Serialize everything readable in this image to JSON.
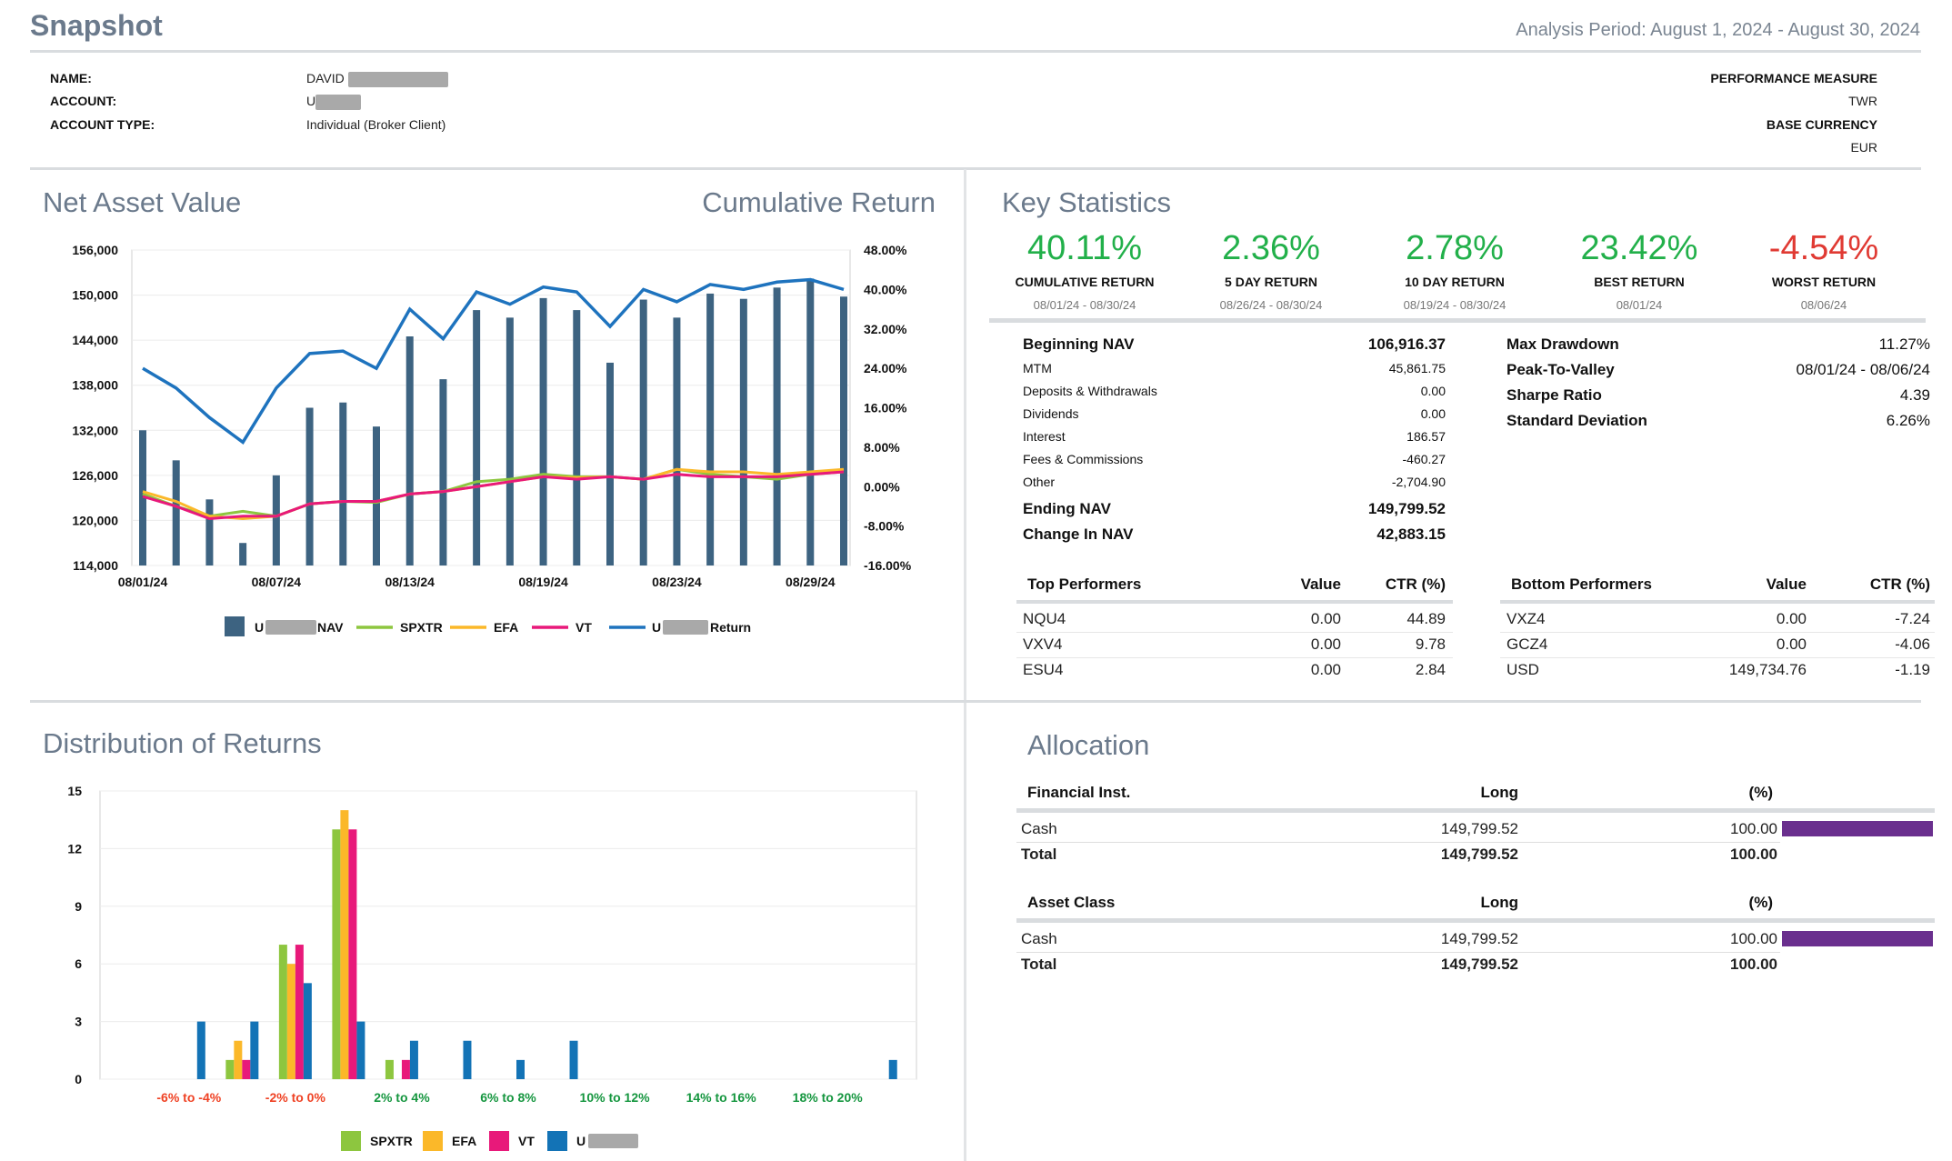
{
  "header": {
    "title": "Snapshot",
    "period": "Analysis Period: August 1, 2024 - August 30, 2024"
  },
  "account": {
    "name_label": "NAME:",
    "name_value": "DAVID",
    "account_label": "ACCOUNT:",
    "account_value": "U",
    "type_label": "ACCOUNT TYPE:",
    "type_value": "Individual (Broker Client)",
    "perf_label": "PERFORMANCE MEASURE",
    "perf_value": "TWR",
    "currency_label": "BASE CURRENCY",
    "currency_value": "EUR"
  },
  "nav_section": {
    "title": "Net Asset Value",
    "title_right": "Cumulative Return"
  },
  "key_stats": {
    "title": "Key Statistics",
    "cards": [
      {
        "pct": "40.11%",
        "label": "CUMULATIVE RETURN",
        "date": "08/01/24 - 08/30/24",
        "color": "#22b04a"
      },
      {
        "pct": "2.36%",
        "label": "5 DAY RETURN",
        "date": "08/26/24 - 08/30/24",
        "color": "#22b04a"
      },
      {
        "pct": "2.78%",
        "label": "10 DAY RETURN",
        "date": "08/19/24 - 08/30/24",
        "color": "#22b04a"
      },
      {
        "pct": "23.42%",
        "label": "BEST RETURN",
        "date": "08/01/24",
        "color": "#22b04a"
      },
      {
        "pct": "-4.54%",
        "label": "WORST RETURN",
        "date": "08/06/24",
        "color": "#e03a33"
      }
    ],
    "nav_rows": [
      {
        "label": "Beginning NAV",
        "value": "106,916.37",
        "strong": true
      },
      {
        "label": "MTM",
        "value": "45,861.75",
        "strong": false
      },
      {
        "label": "Deposits & Withdrawals",
        "value": "0.00",
        "strong": false
      },
      {
        "label": "Dividends",
        "value": "0.00",
        "strong": false
      },
      {
        "label": "Interest",
        "value": "186.57",
        "strong": false
      },
      {
        "label": "Fees & Commissions",
        "value": "-460.27",
        "strong": false
      },
      {
        "label": "Other",
        "value": "-2,704.90",
        "strong": false
      },
      {
        "label": "Ending NAV",
        "value": "149,799.52",
        "strong": true
      },
      {
        "label": "Change In NAV",
        "value": "42,883.15",
        "strong": true
      }
    ],
    "risk_rows": [
      {
        "label": "Max Drawdown",
        "value": "11.27%"
      },
      {
        "label": "Peak-To-Valley",
        "value": "08/01/24 - 08/06/24"
      },
      {
        "label": "Sharpe Ratio",
        "value": "4.39"
      },
      {
        "label": "Standard Deviation",
        "value": "6.26%"
      }
    ],
    "top": {
      "headers": [
        "Top Performers",
        "Value",
        "CTR (%)"
      ],
      "rows": [
        [
          "NQU4",
          "0.00",
          "44.89"
        ],
        [
          "VXV4",
          "0.00",
          "9.78"
        ],
        [
          "ESU4",
          "0.00",
          "2.84"
        ]
      ]
    },
    "bottom": {
      "headers": [
        "Bottom Performers",
        "Value",
        "CTR (%)"
      ],
      "rows": [
        [
          "VXZ4",
          "0.00",
          "-7.24"
        ],
        [
          "GCZ4",
          "0.00",
          "-4.06"
        ],
        [
          "USD",
          "149,734.76",
          "-1.19"
        ]
      ]
    }
  },
  "distribution": {
    "title": "Distribution of Returns"
  },
  "allocation": {
    "title": "Allocation",
    "tables": [
      {
        "headers": [
          "Financial Inst.",
          "Long",
          "(%)"
        ],
        "rows": [
          {
            "label": "Cash",
            "long": "149,799.52",
            "pct": "100.00",
            "bar": 1.0
          }
        ],
        "total": {
          "label": "Total",
          "long": "149,799.52",
          "pct": "100.00"
        }
      },
      {
        "headers": [
          "Asset Class",
          "Long",
          "(%)"
        ],
        "rows": [
          {
            "label": "Cash",
            "long": "149,799.52",
            "pct": "100.00",
            "bar": 1.0
          }
        ],
        "total": {
          "label": "Total",
          "long": "149,799.52",
          "pct": "100.00"
        }
      }
    ],
    "bar_color": "#6a2f8e"
  },
  "chart_data": [
    {
      "type": "bar+line",
      "title": "Net Asset Value",
      "subtitle": "Cumulative Return",
      "x_tick_labels": [
        "08/01/24",
        "08/07/24",
        "08/13/24",
        "08/19/24",
        "08/23/24",
        "08/29/24"
      ],
      "x_tick_index": [
        0,
        4,
        8,
        12,
        16,
        20
      ],
      "left_axis": {
        "ticks": [
          "156,000",
          "150,000",
          "144,000",
          "138,000",
          "132,000",
          "126,000",
          "120,000",
          "114,000"
        ],
        "range": [
          114000,
          156000
        ]
      },
      "right_axis": {
        "ticks": [
          "48.00%",
          "40.00%",
          "32.00%",
          "24.00%",
          "16.00%",
          "8.00%",
          "0.00%",
          "-8.00%",
          "-16.00%"
        ],
        "range": [
          -16,
          48
        ]
      },
      "nav_bars": [
        132000,
        128000,
        122800,
        117000,
        126000,
        135000,
        135700,
        132500,
        144500,
        138800,
        148000,
        147000,
        149600,
        148000,
        141000,
        149400,
        147000,
        150200,
        149500,
        151000,
        152200,
        149800
      ],
      "series": [
        {
          "name": "SPXTR",
          "color": "#8dc63f",
          "values": [
            -1.5,
            -4,
            -6,
            -5,
            -6,
            -3.5,
            -3,
            -3.2,
            -1.5,
            -1,
            1,
            1.5,
            2.5,
            2,
            2,
            1.5,
            3.5,
            2.5,
            2,
            1.5,
            2.5,
            3
          ]
        },
        {
          "name": "EFA",
          "color": "#fbb829",
          "values": [
            -1,
            -3,
            -6,
            -6.5,
            -6,
            -3.5,
            -3,
            -3,
            -1.5,
            -1,
            0,
            1,
            2,
            1.8,
            2,
            1.5,
            3.5,
            3,
            3,
            2.5,
            3,
            3.5
          ]
        },
        {
          "name": "VT",
          "color": "#e8197a",
          "values": [
            -2,
            -4,
            -6.5,
            -6,
            -6,
            -3.5,
            -3,
            -3,
            -1.5,
            -1,
            0,
            1,
            2,
            1.5,
            2,
            1.5,
            2.5,
            2,
            2,
            2,
            2.5,
            3
          ]
        },
        {
          "name": "Return",
          "color": "#1e73be",
          "values": [
            24,
            20,
            14,
            9,
            20,
            27,
            27.5,
            24,
            36,
            30,
            39.5,
            37,
            40.5,
            39.5,
            32.5,
            40,
            37.5,
            41,
            40,
            41.5,
            42,
            40
          ]
        }
      ],
      "legend": [
        "NAV",
        "SPXTR",
        "EFA",
        "VT",
        "Return"
      ]
    },
    {
      "type": "bar",
      "title": "Distribution of Returns",
      "y_ticks": [
        15,
        12,
        9,
        6,
        3,
        0
      ],
      "ylim": [
        0,
        15
      ],
      "bucket_labels": [
        "-6% to -4%",
        "-2% to 0%",
        "2% to 4%",
        "6% to 8%",
        "10% to 12%",
        "14% to 16%",
        "18% to 20%"
      ],
      "label_colors": [
        "#ef4123",
        "#ef4123",
        "#15963f",
        "#15963f",
        "#15963f",
        "#15963f",
        "#15963f"
      ],
      "label_slots": [
        1,
        3,
        5,
        7,
        9,
        11,
        13
      ],
      "slot_count": 15,
      "series": [
        {
          "name": "SPXTR",
          "color": "#8dc63f",
          "values": [
            0,
            0,
            1,
            7,
            13,
            1,
            0,
            0,
            0,
            0,
            0,
            0,
            0,
            0,
            0
          ]
        },
        {
          "name": "EFA",
          "color": "#fbb829",
          "values": [
            0,
            0,
            2,
            6,
            14,
            0,
            0,
            0,
            0,
            0,
            0,
            0,
            0,
            0,
            0
          ]
        },
        {
          "name": "VT",
          "color": "#e8197a",
          "values": [
            0,
            0,
            1,
            7,
            13,
            1,
            0,
            0,
            0,
            0,
            0,
            0,
            0,
            0,
            0
          ]
        },
        {
          "name": "U",
          "color": "#1373b6",
          "values": [
            0,
            3,
            3,
            5,
            3,
            2,
            2,
            1,
            2,
            0,
            0,
            0,
            0,
            0,
            1
          ]
        }
      ],
      "legend": [
        "SPXTR",
        "EFA",
        "VT",
        "U"
      ]
    }
  ]
}
